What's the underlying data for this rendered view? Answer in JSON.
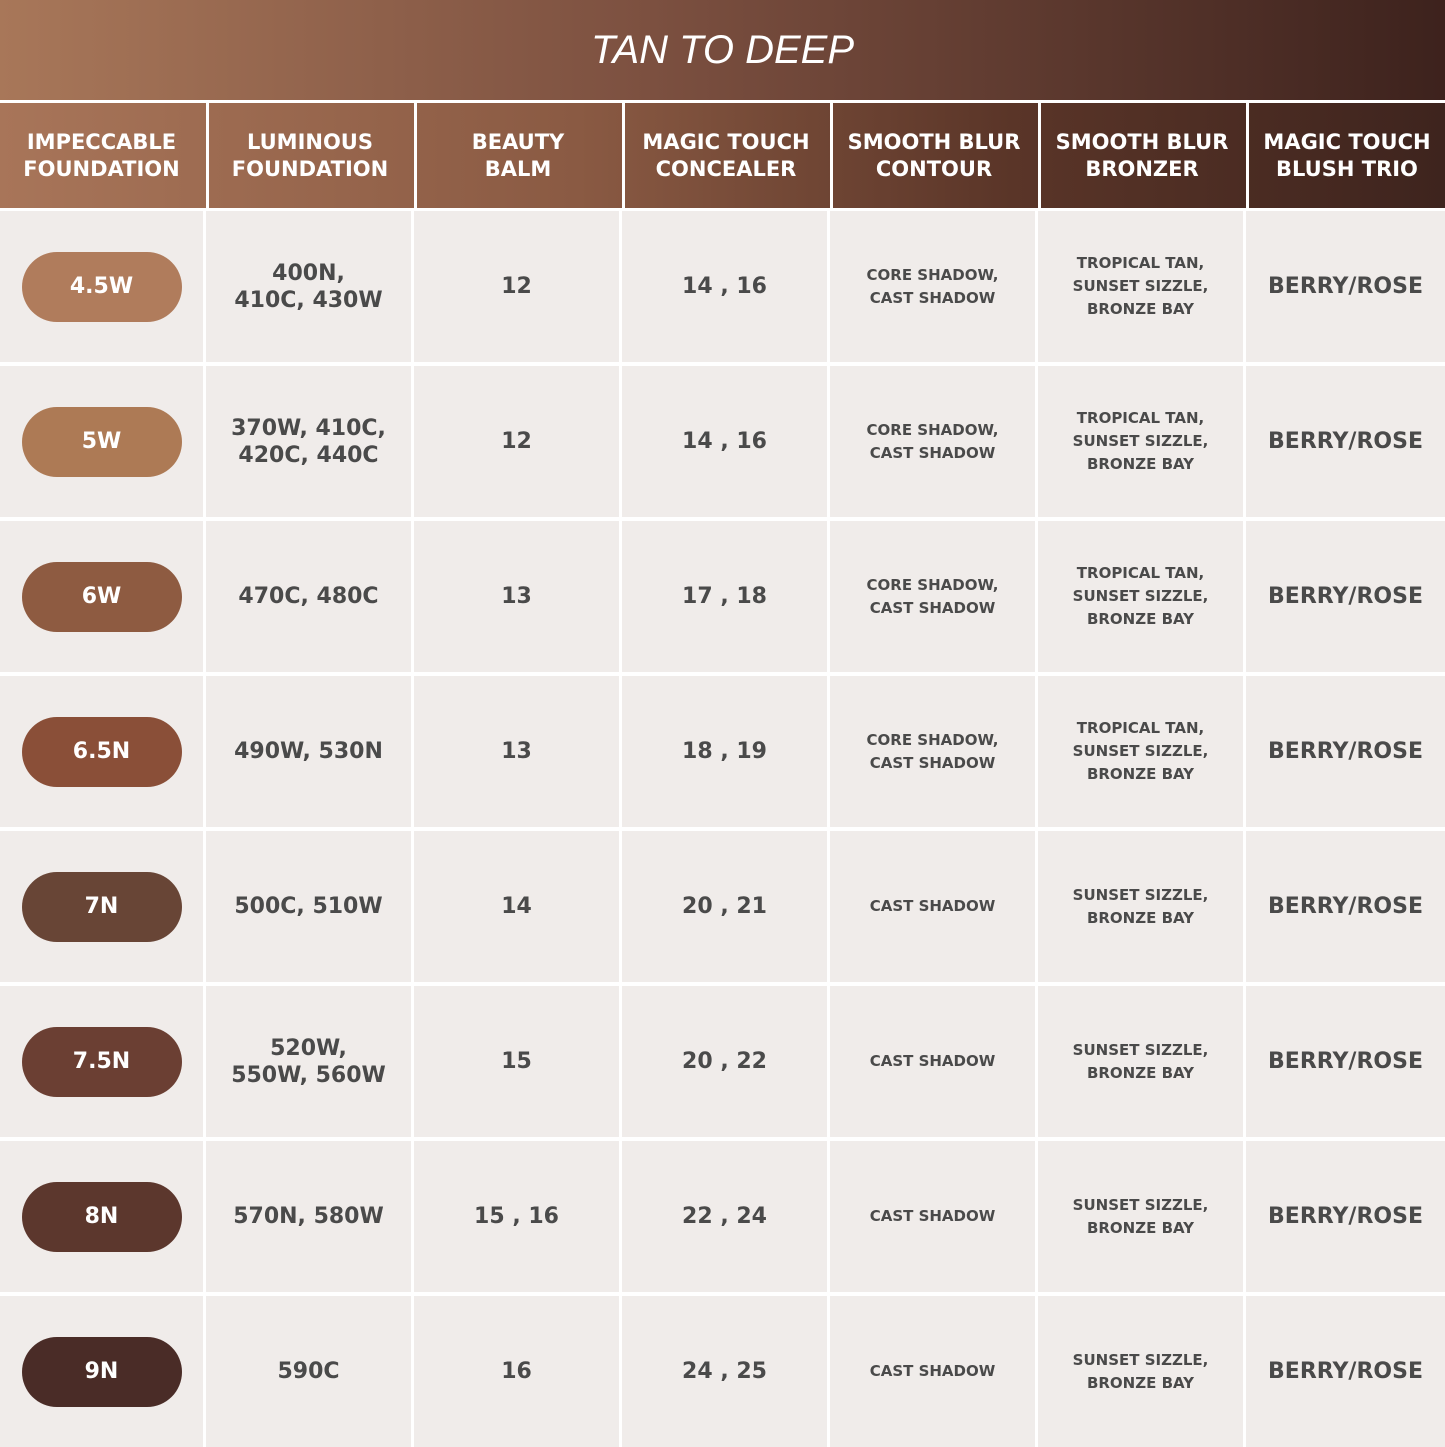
{
  "title": "TAN TO DEEP",
  "columns": [
    "IMPECCABLE\nFOUNDATION",
    "LUMINOUS\nFOUNDATION",
    "BEAUTY\nBALM",
    "MAGIC TOUCH\nCONCEALER",
    "SMOOTH BLUR\nCONTOUR",
    "SMOOTH BLUR\nBRONZER",
    "MAGIC TOUCH\nBLUSH TRIO"
  ],
  "rows": [
    {
      "shade": "4.5W",
      "color": "#b07c5c",
      "cells": [
        "400N,\n410C, 430W",
        "12",
        "14 , 16",
        "CORE SHADOW,\nCAST SHADOW",
        "TROPICAL TAN,\nSUNSET SIZZLE,\nBRONZE BAY",
        "BERRY/ROSE"
      ]
    },
    {
      "shade": "5W",
      "color": "#ad7a55",
      "cells": [
        "370W, 410C,\n420C, 440C",
        "12",
        "14 , 16",
        "CORE SHADOW,\nCAST SHADOW",
        "TROPICAL TAN,\nSUNSET SIZZLE,\nBRONZE BAY",
        "BERRY/ROSE"
      ]
    },
    {
      "shade": "6W",
      "color": "#8e5b41",
      "cells": [
        "470C, 480C",
        "13",
        "17 , 18",
        "CORE SHADOW,\nCAST SHADOW",
        "TROPICAL TAN,\nSUNSET SIZZLE,\nBRONZE BAY",
        "BERRY/ROSE"
      ]
    },
    {
      "shade": "6.5N",
      "color": "#8a4f38",
      "cells": [
        "490W, 530N",
        "13",
        "18 , 19",
        "CORE SHADOW,\nCAST SHADOW",
        "TROPICAL TAN,\nSUNSET SIZZLE,\nBRONZE BAY",
        "BERRY/ROSE"
      ]
    },
    {
      "shade": "7N",
      "color": "#684536",
      "cells": [
        "500C, 510W",
        "14",
        "20 , 21",
        "CAST SHADOW",
        "SUNSET SIZZLE,\nBRONZE BAY",
        "BERRY/ROSE"
      ]
    },
    {
      "shade": "7.5N",
      "color": "#6b3f33",
      "cells": [
        "520W,\n550W, 560W",
        "15",
        "20 , 22",
        "CAST SHADOW",
        "SUNSET SIZZLE,\nBRONZE BAY",
        "BERRY/ROSE"
      ]
    },
    {
      "shade": "8N",
      "color": "#5c372d",
      "cells": [
        "570N, 580W",
        "15 , 16",
        "22 , 24",
        "CAST SHADOW",
        "SUNSET SIZZLE,\nBRONZE BAY",
        "BERRY/ROSE"
      ]
    },
    {
      "shade": "9N",
      "color": "#4a2c27",
      "cells": [
        "590C",
        "16",
        "24 , 25",
        "CAST SHADOW",
        "SUNSET SIZZLE,\nBRONZE BAY",
        "BERRY/ROSE"
      ]
    }
  ]
}
